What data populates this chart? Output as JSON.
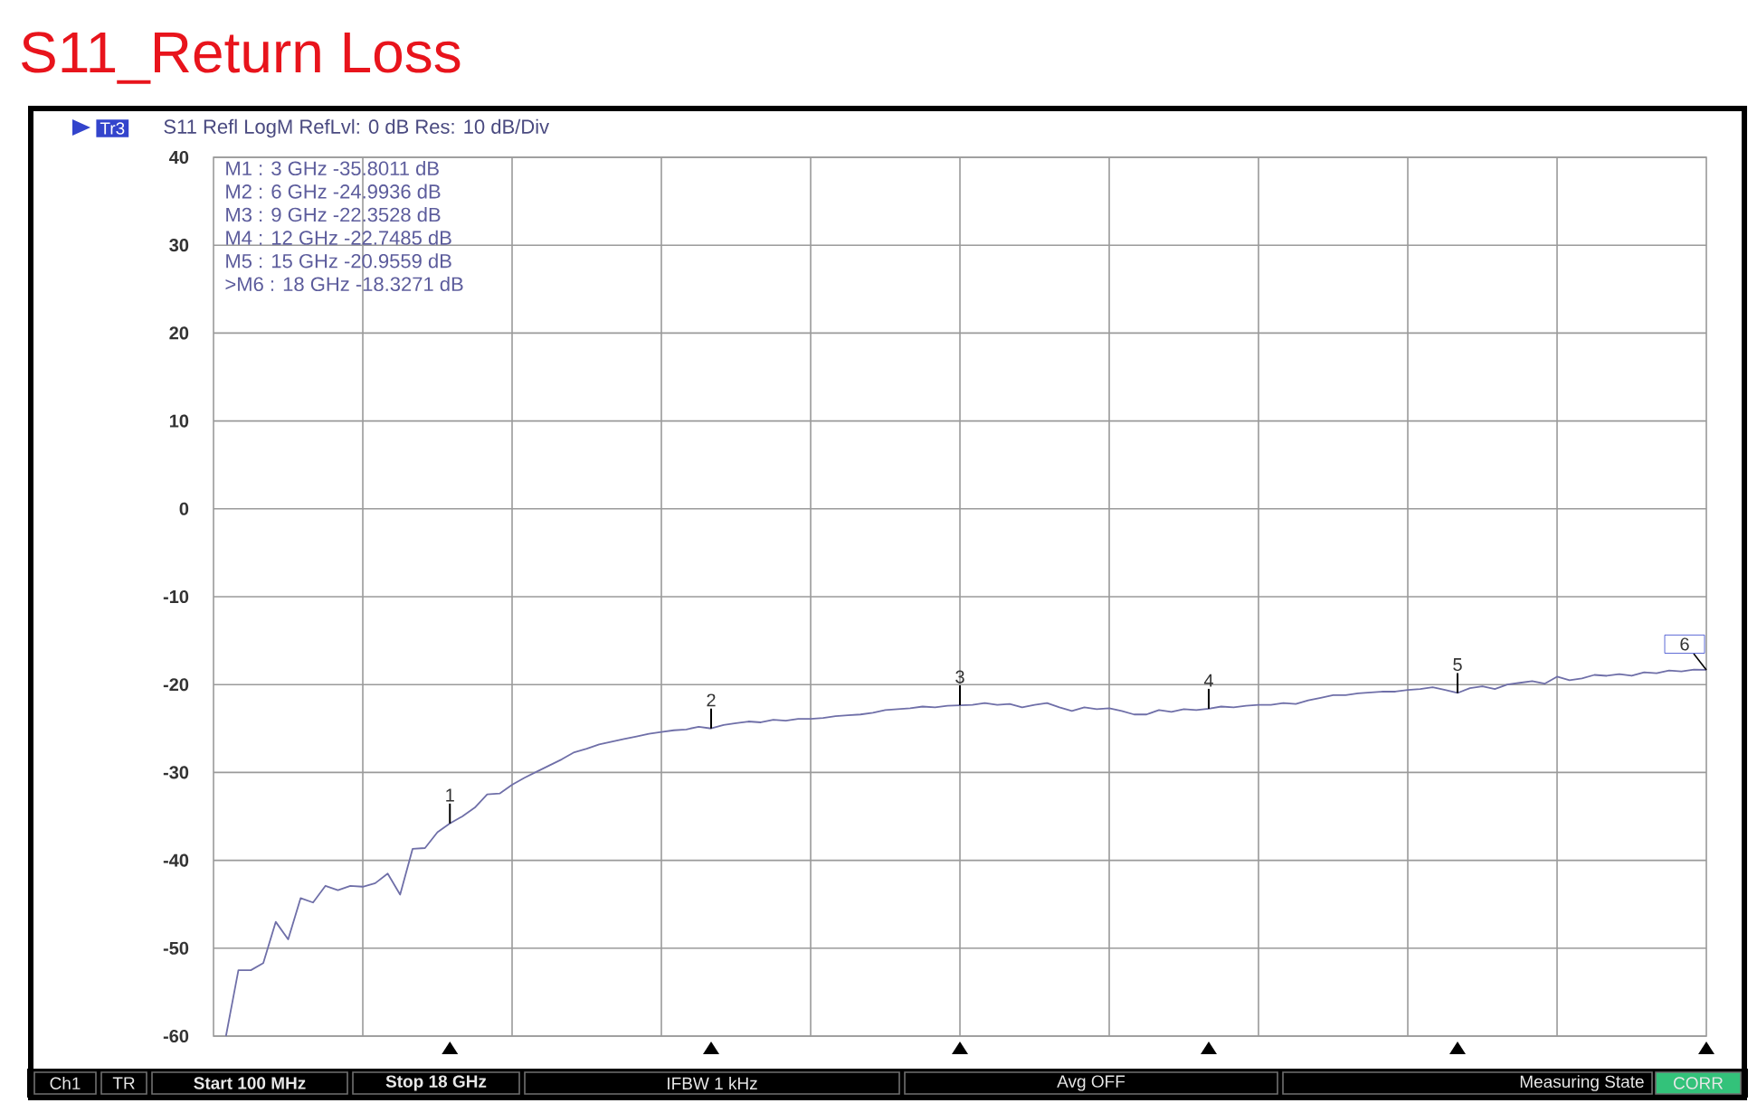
{
  "chart_data": {
    "type": "line",
    "title": "S11_Return Loss",
    "subtitle": "S11 Refl LogM RefLvl: 0 dB Res: 10 dB/Div",
    "categories": [
      null,
      null,
      null,
      null,
      null,
      null,
      null,
      null,
      null,
      null,
      null,
      null,
      null,
      null,
      null,
      null,
      null,
      null,
      null,
      null,
      null,
      null,
      null,
      null,
      null,
      null,
      null,
      null,
      null,
      null,
      null,
      null,
      null,
      null,
      null,
      null,
      null,
      null,
      null,
      null,
      null,
      null,
      null,
      null,
      null,
      null,
      null,
      null,
      null,
      null,
      null,
      null,
      null,
      null,
      null,
      null,
      null,
      null,
      null,
      null,
      null,
      null,
      null,
      null,
      null,
      null,
      null,
      null,
      null,
      null,
      null,
      null,
      null,
      null,
      null,
      null,
      null,
      null,
      null,
      null,
      null,
      null,
      null,
      null,
      null,
      null,
      null,
      null,
      null,
      null,
      null,
      null,
      null,
      null,
      null,
      null,
      null,
      null,
      null,
      null,
      null,
      null,
      null,
      null,
      null,
      null,
      null,
      null,
      null,
      null,
      null,
      null,
      null,
      null,
      null,
      null,
      null,
      null,
      null,
      null,
      null
    ],
    "series": [
      {
        "color": "#6f6fa8",
        "values": [
          null,
          -60,
          -52.5,
          -52.5,
          -51.7,
          -47,
          -49,
          -44.3,
          -44.8,
          -42.9,
          -43.4,
          -42.9,
          -43,
          -42.6,
          -41.5,
          -43.9,
          -38.7,
          -38.6,
          -36.8,
          -35.8011,
          -35,
          -34,
          -32.5,
          -32.4,
          -31.4,
          -30.6,
          -29.9,
          -29.2,
          -28.5,
          -27.7,
          -27.3,
          -26.8,
          -26.5,
          -26.2,
          -25.9,
          -25.6,
          -25.4,
          -25.2,
          -25.1,
          -24.8,
          -24.9936,
          -24.6,
          -24.4,
          -24.2,
          -24.3,
          -24,
          -24.1,
          -23.9,
          -23.9,
          -23.8,
          -23.6,
          -23.5,
          -23.4,
          -23.2,
          -22.9,
          -22.8,
          -22.7,
          -22.5,
          -22.6,
          -22.4,
          -22.3528,
          -22.3,
          -22.1,
          -22.3,
          -22.2,
          -22.6,
          -22.3,
          -22.1,
          -22.6,
          -23,
          -22.6,
          -22.8,
          -22.7,
          -23,
          -23.4,
          -23.4,
          -22.9,
          -23.1,
          -22.8,
          -22.9,
          -22.7485,
          -22.5,
          -22.6,
          -22.4,
          -22.3,
          -22.3,
          -22.1,
          -22.2,
          -21.8,
          -21.5,
          -21.2,
          -21.2,
          -21,
          -20.9,
          -20.8,
          -20.8,
          -20.6,
          -20.5,
          -20.3,
          -20.6,
          -20.9559,
          -20.4,
          -20.2,
          -20.5,
          -20,
          -19.8,
          -19.6,
          -19.9,
          -19.1,
          -19.5,
          -19.3,
          -18.9,
          -19,
          -18.8,
          -19,
          -18.6,
          -18.7,
          -18.4,
          -18.5,
          -18.3,
          -18.3271
        ]
      }
    ],
    "ylim": [
      -60,
      40
    ],
    "yticks": [
      -60,
      -50,
      -40,
      -30,
      -20,
      -10,
      0,
      10,
      20,
      30,
      40
    ],
    "grid": true,
    "annotations": [
      "Tr3",
      "M1 : 3 GHz -35.8011 dB",
      "M2 : 6 GHz -24.9936 dB",
      "M3 : 9 GHz -22.3528 dB",
      "M4 : 12 GHz -22.7485 dB",
      "M5 : 15 GHz -20.9559 dB",
      ">M6 : 18 GHz -18.3271 dB",
      "Ch1",
      "TR",
      "Start 100 MHz",
      "Stop 18 GHz",
      "IFBW 1 kHz",
      "Avg OFF",
      "Measuring State",
      "CORR",
      {
        "text": "1",
        "y": -35.8011
      },
      {
        "text": "2",
        "y": -24.9936
      },
      {
        "text": "3",
        "y": -22.3528
      },
      {
        "text": "4",
        "y": -22.7485
      },
      {
        "text": "5",
        "y": -20.9559
      },
      {
        "text": "6",
        "y": -18.3271
      }
    ]
  }
}
